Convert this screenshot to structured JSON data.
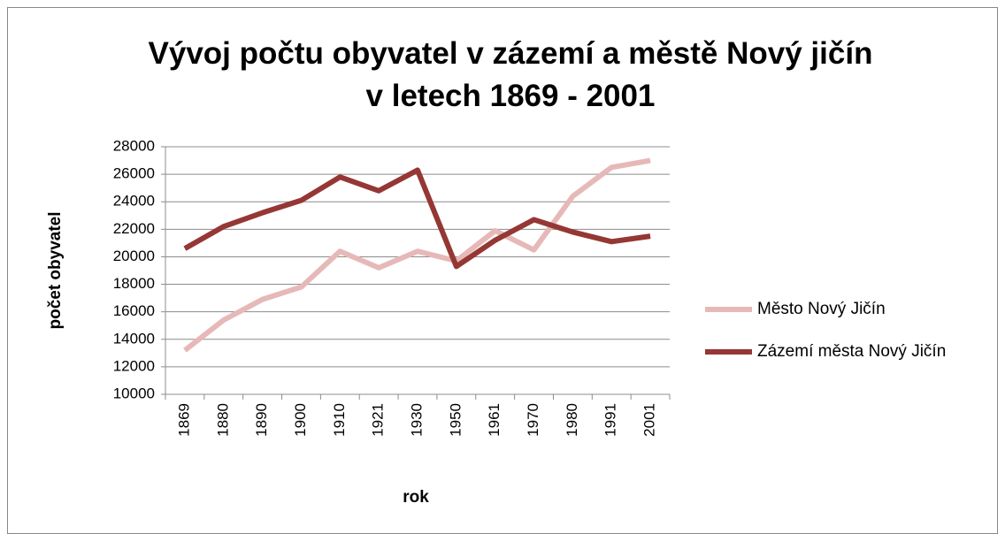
{
  "chart_data": {
    "type": "line",
    "title": [
      "Vývoj počtu obyvatel v zázemí a městě Nový jičín",
      "v letech 1869 - 2001"
    ],
    "x_label": "rok",
    "y_label": "počet obyvatel",
    "categories": [
      "1869",
      "1880",
      "1890",
      "1900",
      "1910",
      "1921",
      "1930",
      "1950",
      "1961",
      "1970",
      "1980",
      "1991",
      "2001"
    ],
    "series": [
      {
        "name": "Město Nový Jičín",
        "color": "#e6b9b8",
        "values": [
          13200,
          15400,
          16900,
          17800,
          20400,
          19200,
          20400,
          19700,
          21900,
          20500,
          24400,
          26500,
          27000
        ]
      },
      {
        "name": "Zázemí města Nový Jičín",
        "color": "#953735",
        "values": [
          20600,
          22200,
          23200,
          24100,
          25800,
          24800,
          26300,
          19300,
          21200,
          22700,
          21800,
          21100,
          21500
        ]
      }
    ],
    "ylim": [
      10000,
      28000
    ],
    "yticks": [
      10000,
      12000,
      14000,
      16000,
      18000,
      20000,
      22000,
      24000,
      26000,
      28000
    ],
    "grid": true,
    "legend": "right"
  }
}
